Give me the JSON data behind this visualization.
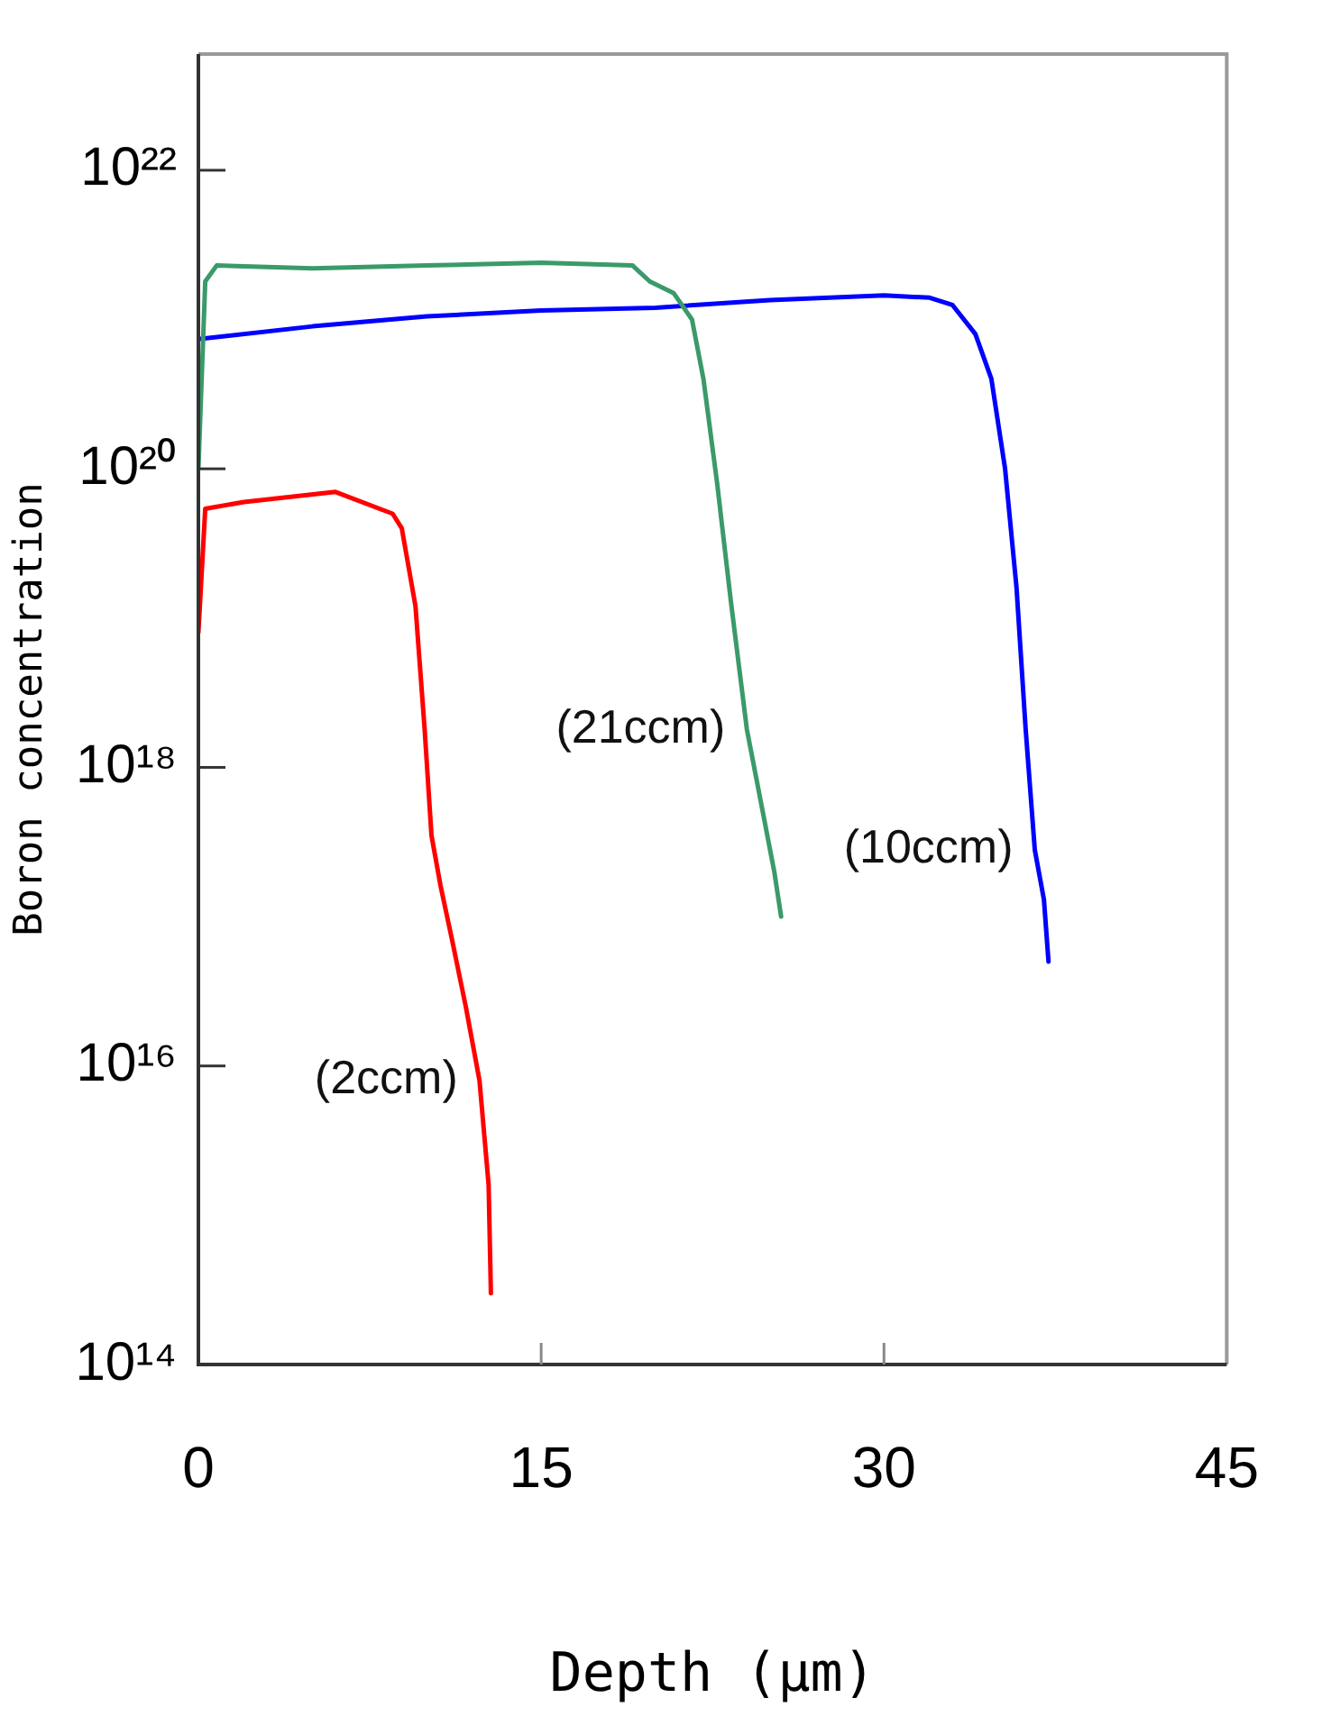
{
  "chart_data": {
    "type": "line",
    "xlabel": "Depth (μm)",
    "ylabel": "Boron concentration",
    "log": "y",
    "grid": false,
    "legend": false,
    "marker": "none",
    "line_style": "solid",
    "xlim": [
      0,
      45
    ],
    "xticks": [
      0,
      15,
      30,
      45
    ],
    "ylim": [
      100000000000000.0,
      6e+22
    ],
    "yticks": [
      {
        "value": 100000000000000.0,
        "label": "10¹⁴"
      },
      {
        "value": 1e+16,
        "label": "10¹⁶"
      },
      {
        "value": 1e+18,
        "label": "10¹⁸"
      },
      {
        "value": 1e+20,
        "label": "10²⁰"
      },
      {
        "value": 1e+22,
        "label": "10²²"
      }
    ],
    "series": [
      {
        "name": "(2ccm)",
        "color": "#ff0000",
        "x": [
          0,
          0.3,
          2,
          6,
          8.5,
          8.9,
          9.5,
          9.9,
          10.2,
          10.6,
          11.1,
          11.7,
          12.3,
          12.7,
          12.8
        ],
        "values": [
          8e+18,
          5.4e+19,
          6e+19,
          7e+19,
          5e+19,
          4e+19,
          1.2e+19,
          1.8e+18,
          3.5e+17,
          1.6e+17,
          7e+16,
          2.5e+16,
          8000000000000000.0,
          1600000000000000.0,
          300000000000000.0
        ]
      },
      {
        "name": "(21ccm)",
        "color": "#3a9a6a",
        "x": [
          0,
          0.3,
          0.8,
          5,
          10,
          15,
          19,
          19.75,
          20.8,
          21.6,
          22.1,
          22.7,
          23.3,
          24,
          24.7,
          25.2,
          25.5
        ],
        "values": [
          1e+20,
          1.8e+21,
          2.3e+21,
          2.2e+21,
          2.3e+21,
          2.4e+21,
          2.3e+21,
          1.8e+21,
          1.5e+21,
          1e+21,
          4e+20,
          8e+19,
          1.3e+19,
          1.8e+18,
          5e+17,
          2e+17,
          1e+17
        ]
      },
      {
        "name": "(10ccm)",
        "color": "#0000ff",
        "x": [
          0,
          5,
          10,
          15,
          20,
          25,
          30,
          32,
          33,
          34,
          34.7,
          35.3,
          35.8,
          36.2,
          36.6,
          37,
          37.2
        ],
        "values": [
          7.4e+20,
          9e+20,
          1.05e+21,
          1.15e+21,
          1.2e+21,
          1.35e+21,
          1.45e+21,
          1.4e+21,
          1.25e+21,
          8e+20,
          4e+20,
          1e+20,
          1.6e+19,
          1.8e+18,
          2.8e+17,
          1.3e+17,
          5e+16
        ]
      }
    ]
  }
}
